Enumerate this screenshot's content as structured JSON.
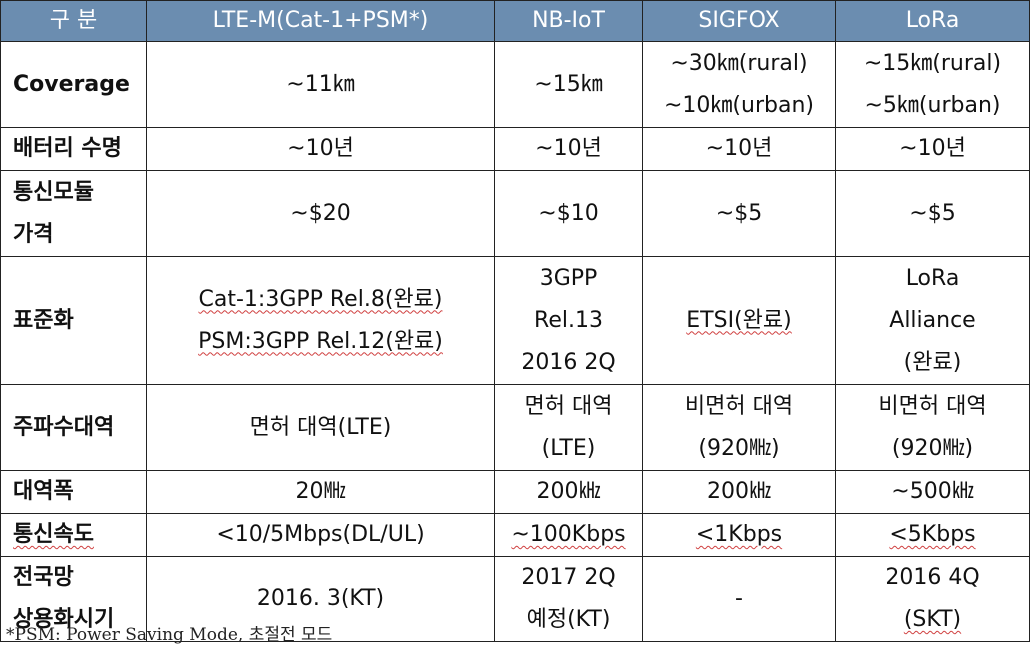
{
  "header": {
    "category": "구 분",
    "col1": "LTE-M(Cat-1+PSM*)",
    "col2": "NB-IoT",
    "col3": "SIGFOX",
    "col4": "LoRa"
  },
  "rows": [
    {
      "label": [
        "Coverage"
      ],
      "c1": [
        "~11㎞"
      ],
      "c2": [
        "~15㎞"
      ],
      "c3": [
        "~30㎞(rural)",
        "~10㎞(urban)"
      ],
      "c4": [
        "~15㎞(rural)",
        "~5㎞(urban)"
      ]
    },
    {
      "label": [
        "배터리 수명"
      ],
      "c1": [
        "~10년"
      ],
      "c2": [
        "~10년"
      ],
      "c3": [
        "~10년"
      ],
      "c4": [
        "~10년"
      ]
    },
    {
      "label": [
        "통신모듈",
        "가격"
      ],
      "c1": [
        "~$20"
      ],
      "c2": [
        "~$10"
      ],
      "c3": [
        "~$5"
      ],
      "c4": [
        "~$5"
      ]
    },
    {
      "label": [
        "표준화"
      ],
      "c1": [
        "Cat-1:3GPP Rel.8(완료)",
        "PSM:3GPP Rel.12(완료)"
      ],
      "c2": [
        "3GPP",
        "Rel.13",
        "2016 2Q"
      ],
      "c3": [
        "ETSI(완료)"
      ],
      "c4": [
        "LoRa",
        "Alliance",
        "(완료)"
      ]
    },
    {
      "label": [
        "주파수대역"
      ],
      "c1": [
        "면허 대역(LTE)"
      ],
      "c2": [
        "면허 대역",
        "(LTE)"
      ],
      "c3": [
        "비면허 대역",
        "(920㎒)"
      ],
      "c4": [
        "비면허 대역",
        "(920㎒)"
      ]
    },
    {
      "label": [
        "대역폭"
      ],
      "c1": [
        "20㎒"
      ],
      "c2": [
        "200㎑"
      ],
      "c3": [
        "200㎑"
      ],
      "c4": [
        "~500㎑"
      ]
    },
    {
      "label": [
        "통신속도"
      ],
      "c1": [
        "<10/5Mbps(DL/UL)"
      ],
      "c2": [
        "~100Kbps"
      ],
      "c3": [
        "<1Kbps"
      ],
      "c4": [
        "<5Kbps"
      ]
    },
    {
      "label": [
        "전국망",
        "상용화시기"
      ],
      "c1": [
        "2016. 3(KT)"
      ],
      "c2": [
        "2017 2Q",
        "예정(KT)"
      ],
      "c3": [
        "-"
      ],
      "c4": [
        "2016 4Q",
        "(SKT)"
      ]
    }
  ],
  "footnote": "*PSM: Power Saving Mode, 초절전 모드",
  "colors": {
    "header_bg": "#6b8db0",
    "header_text": "#ffffff",
    "border": "#222222"
  }
}
